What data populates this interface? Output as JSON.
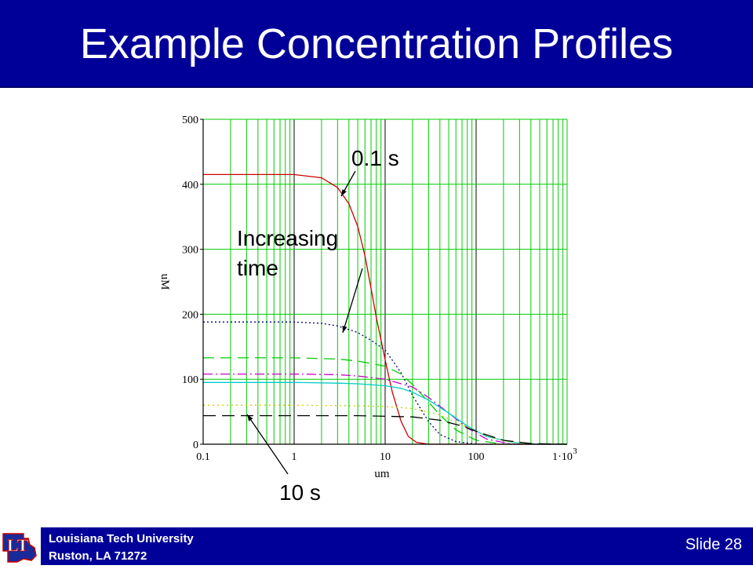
{
  "slide": {
    "title": "Example Concentration Profiles",
    "footer_name": "Louisiana Tech University",
    "footer_address": "Ruston, LA 71272",
    "slide_label": "Slide 28"
  },
  "logo": {
    "icon": "louisiana-tech-logo-icon",
    "text": "LT"
  },
  "annotations": {
    "first": "0.1 s",
    "middle_line1": "Increasing",
    "middle_line2": "time",
    "last": "10 s"
  },
  "colors": {
    "title_bar": "#000099",
    "grid": "#00cc00",
    "grid_major": "#000000"
  },
  "chart_data": {
    "type": "line",
    "title": "",
    "xlabel": "um",
    "ylabel": "uM",
    "xscale": "log",
    "xlim": [
      0.1,
      1000
    ],
    "ylim": [
      0,
      500
    ],
    "x_ticks": [
      0.1,
      1,
      10,
      100,
      1000
    ],
    "x_tick_labels": [
      "0.1",
      "1",
      "10",
      "100",
      "1·10"
    ],
    "x_tick_exponent": "3",
    "y_ticks": [
      0,
      100,
      200,
      300,
      400,
      500
    ],
    "y_tick_labels": [
      "0",
      "100",
      "200",
      "300",
      "400",
      "500"
    ],
    "grid": true,
    "series": [
      {
        "color": "#cc0000",
        "dash": "",
        "values_desc": "first",
        "points": [
          [
            0.1,
            415
          ],
          [
            1,
            415
          ],
          [
            2,
            410
          ],
          [
            3,
            395
          ],
          [
            4,
            370
          ],
          [
            5,
            335
          ],
          [
            6,
            290
          ],
          [
            7,
            240
          ],
          [
            8,
            195
          ],
          [
            10,
            130
          ],
          [
            12,
            80
          ],
          [
            15,
            35
          ],
          [
            18,
            12
          ],
          [
            22,
            3
          ],
          [
            30,
            0
          ],
          [
            1000,
            0
          ]
        ]
      },
      {
        "color": "#000080",
        "dash": "2 3",
        "points": [
          [
            0.1,
            188
          ],
          [
            1,
            188
          ],
          [
            2,
            186
          ],
          [
            3,
            182
          ],
          [
            5,
            172
          ],
          [
            7,
            160
          ],
          [
            10,
            145
          ],
          [
            15,
            110
          ],
          [
            20,
            75
          ],
          [
            30,
            35
          ],
          [
            40,
            15
          ],
          [
            60,
            4
          ],
          [
            100,
            0
          ],
          [
            1000,
            0
          ]
        ]
      },
      {
        "color": "#00cc00",
        "dash": "14 8",
        "points": [
          [
            0.1,
            133
          ],
          [
            1,
            133
          ],
          [
            3,
            131
          ],
          [
            5,
            128
          ],
          [
            10,
            120
          ],
          [
            15,
            108
          ],
          [
            20,
            92
          ],
          [
            30,
            65
          ],
          [
            40,
            45
          ],
          [
            60,
            22
          ],
          [
            100,
            6
          ],
          [
            200,
            0
          ],
          [
            1000,
            0
          ]
        ]
      },
      {
        "color": "#cc00cc",
        "dash": "12 4 2 4",
        "points": [
          [
            0.1,
            108
          ],
          [
            1,
            108
          ],
          [
            3,
            107
          ],
          [
            5,
            105
          ],
          [
            10,
            100
          ],
          [
            20,
            88
          ],
          [
            30,
            72
          ],
          [
            50,
            48
          ],
          [
            80,
            25
          ],
          [
            130,
            8
          ],
          [
            250,
            0
          ],
          [
            1000,
            0
          ]
        ]
      },
      {
        "color": "#00cccc",
        "dash": "",
        "points": [
          [
            0.1,
            95
          ],
          [
            1,
            95
          ],
          [
            3,
            94
          ],
          [
            5,
            93
          ],
          [
            10,
            90
          ],
          [
            15,
            86
          ],
          [
            20,
            80
          ],
          [
            30,
            68
          ],
          [
            50,
            48
          ],
          [
            80,
            28
          ],
          [
            130,
            12
          ],
          [
            250,
            3
          ],
          [
            500,
            0
          ],
          [
            1000,
            0
          ]
        ]
      },
      {
        "color": "#cccc00",
        "dash": "2 4",
        "points": [
          [
            0.1,
            60
          ],
          [
            1,
            60
          ],
          [
            5,
            59
          ],
          [
            10,
            58
          ],
          [
            20,
            55
          ],
          [
            40,
            45
          ],
          [
            70,
            30
          ],
          [
            120,
            15
          ],
          [
            200,
            5
          ],
          [
            400,
            0
          ],
          [
            1000,
            0
          ]
        ]
      },
      {
        "color": "#000000",
        "dash": "16 8",
        "points": [
          [
            0.1,
            44
          ],
          [
            1,
            44
          ],
          [
            5,
            44
          ],
          [
            10,
            43
          ],
          [
            20,
            42
          ],
          [
            40,
            37
          ],
          [
            70,
            28
          ],
          [
            120,
            16
          ],
          [
            200,
            6
          ],
          [
            400,
            1
          ],
          [
            1000,
            0
          ]
        ]
      }
    ]
  }
}
